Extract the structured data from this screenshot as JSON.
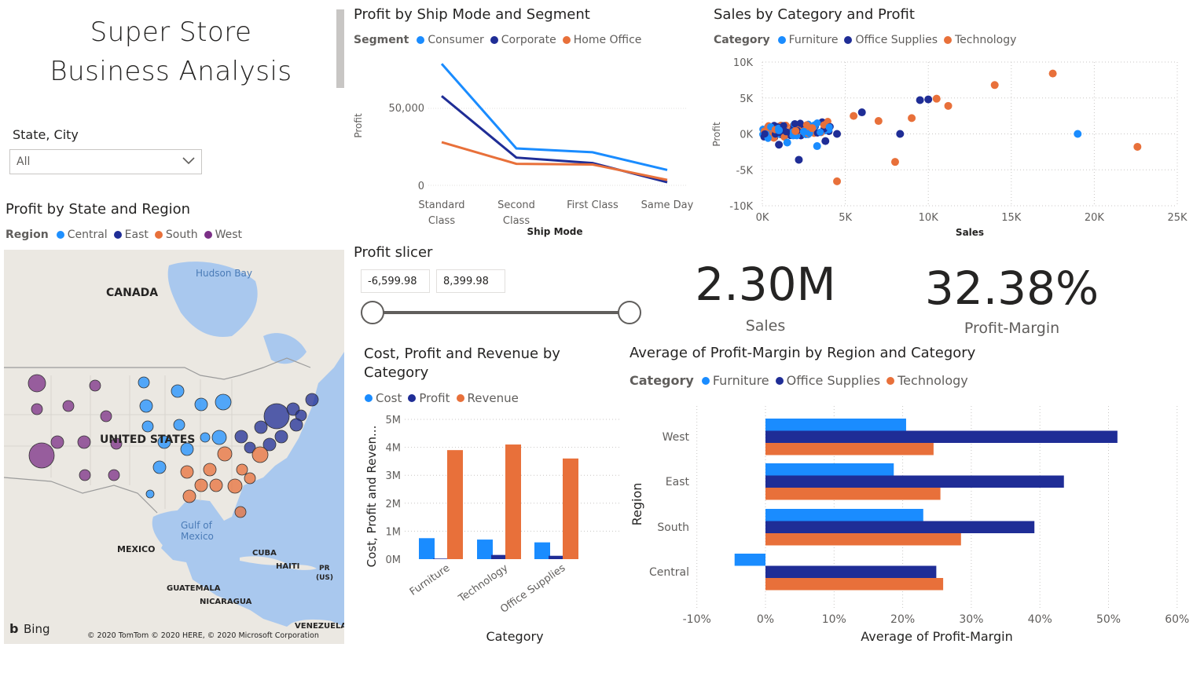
{
  "header": {
    "line1": "Super Store",
    "line2": "Business Analysis"
  },
  "state_slicer": {
    "label": "State, City",
    "value": "All"
  },
  "map": {
    "title": "Profit by State and Region",
    "legend_title": "Region",
    "legend": [
      {
        "name": "Central",
        "color": "#1e90ff"
      },
      {
        "name": "East",
        "color": "#1f2d96"
      },
      {
        "name": "South",
        "color": "#e8703a"
      },
      {
        "name": "West",
        "color": "#7b2f86"
      }
    ],
    "labels": {
      "hudson": "Hudson Bay",
      "canada": "CANADA",
      "us": "UNITED STATES",
      "gulf1": "Gulf of",
      "gulf2": "Mexico",
      "mexico": "MEXICO",
      "cuba": "CUBA",
      "haiti": "HAITI",
      "pr1": "PR",
      "pr2": "(US)",
      "guatemala": "GUATEMALA",
      "nicaragua": "NICARAGUA",
      "venezuela": "VENEZUELA",
      "bing": "Bing",
      "copyright": "© 2020 TomTom © 2020 HERE, © 2020 Microsoft Corporation"
    }
  },
  "line_chart": {
    "title": "Profit by Ship Mode and Segment",
    "legend_title": "Segment",
    "legend": [
      {
        "name": "Consumer",
        "color": "#1a8cff"
      },
      {
        "name": "Corporate",
        "color": "#1f2d96"
      },
      {
        "name": "Home Office",
        "color": "#e8703a"
      }
    ],
    "ylabel": "Profit",
    "xlabel": "Ship Mode",
    "yticks": [
      "50,000",
      "0"
    ],
    "categories": [
      [
        "Standard",
        "Class"
      ],
      [
        "Second",
        "Class"
      ],
      [
        "First Class"
      ],
      [
        "Same Day"
      ]
    ]
  },
  "scatter_chart": {
    "title": "Sales by Category and Profit",
    "legend_title": "Category",
    "legend": [
      {
        "name": "Furniture",
        "color": "#1a8cff"
      },
      {
        "name": "Office Supplies",
        "color": "#1f2d96"
      },
      {
        "name": "Technology",
        "color": "#e8703a"
      }
    ],
    "ylabel": "Profit",
    "xlabel": "Sales",
    "yticks": [
      "10K",
      "5K",
      "0K",
      "-5K",
      "-10K"
    ],
    "xticks": [
      "0K",
      "5K",
      "10K",
      "15K",
      "20K",
      "25K"
    ]
  },
  "profit_slicer": {
    "title": "Profit slicer",
    "min": "-6,599.98",
    "max": "8,399.98"
  },
  "cards": [
    {
      "value": "2.30M",
      "label": "Sales"
    },
    {
      "value": "32.38%",
      "label": "Profit-Margin"
    }
  ],
  "column_chart": {
    "title_line1": "Cost, Profit and Revenue by",
    "title_line2": "Category",
    "legend": [
      {
        "name": "Cost",
        "color": "#1a8cff"
      },
      {
        "name": "Profit",
        "color": "#1f2d96"
      },
      {
        "name": "Revenue",
        "color": "#e8703a"
      }
    ],
    "ylabel": "Cost, Profit and Reven...",
    "xlabel": "Category",
    "yticks": [
      "5M",
      "4M",
      "3M",
      "2M",
      "1M",
      "0M"
    ]
  },
  "bar_chart": {
    "title": "Average of Profit-Margin by Region and Category",
    "legend_title": "Category",
    "legend": [
      {
        "name": "Furniture",
        "color": "#1a8cff"
      },
      {
        "name": "Office Supplies",
        "color": "#1f2d96"
      },
      {
        "name": "Technology",
        "color": "#e8703a"
      }
    ],
    "ylabel": "Region",
    "xlabel": "Average of Profit-Margin",
    "xticks": [
      "-10%",
      "0%",
      "10%",
      "20%",
      "30%",
      "40%",
      "50%",
      "60%"
    ]
  },
  "chart_data": [
    {
      "type": "line",
      "title": "Profit by Ship Mode and Segment",
      "xlabel": "Ship Mode",
      "ylabel": "Profit",
      "categories": [
        "Standard Class",
        "Second Class",
        "First Class",
        "Same Day"
      ],
      "series": [
        {
          "name": "Consumer",
          "values": [
            79000,
            24000,
            21500,
            10000
          ]
        },
        {
          "name": "Corporate",
          "values": [
            58000,
            18000,
            14500,
            2000
          ]
        },
        {
          "name": "Home Office",
          "values": [
            28000,
            14000,
            13500,
            3500
          ]
        }
      ]
    },
    {
      "type": "scatter",
      "title": "Sales by Category and Profit",
      "xlabel": "Sales",
      "ylabel": "Profit",
      "xlim": [
        0,
        25000
      ],
      "ylim": [
        -10000,
        10000
      ],
      "series": [
        {
          "name": "Furniture",
          "points": [
            [
              19000,
              0
            ],
            [
              3300,
              -1700
            ],
            [
              1500,
              -1200
            ],
            [
              1000,
              500
            ],
            [
              2500,
              300
            ]
          ]
        },
        {
          "name": "Office Supplies",
          "points": [
            [
              10000,
              4800
            ],
            [
              9500,
              4700
            ],
            [
              6000,
              3000
            ],
            [
              8300,
              0
            ],
            [
              2200,
              -3600
            ],
            [
              1000,
              -1500
            ],
            [
              3800,
              -1000
            ],
            [
              4500,
              0
            ]
          ]
        },
        {
          "name": "Technology",
          "points": [
            [
              17500,
              8400
            ],
            [
              14000,
              6800
            ],
            [
              22600,
              -1800
            ],
            [
              10500,
              4900
            ],
            [
              11200,
              3900
            ],
            [
              9000,
              2200
            ],
            [
              8000,
              -3900
            ],
            [
              4500,
              -6600
            ],
            [
              5500,
              2500
            ],
            [
              7000,
              1800
            ],
            [
              3000,
              800
            ],
            [
              2000,
              400
            ]
          ]
        }
      ]
    },
    {
      "type": "bar",
      "title": "Cost, Profit and Revenue by Category",
      "xlabel": "Category",
      "ylabel": "Cost, Profit and Reven...",
      "ylim": [
        0,
        5000000
      ],
      "categories": [
        "Furniture",
        "Technology",
        "Office Supplies"
      ],
      "series": [
        {
          "name": "Cost",
          "values": [
            750000,
            700000,
            600000
          ]
        },
        {
          "name": "Profit",
          "values": [
            20000,
            150000,
            120000
          ]
        },
        {
          "name": "Revenue",
          "values": [
            3900000,
            4100000,
            3600000
          ]
        }
      ]
    },
    {
      "type": "bar",
      "title": "Average of Profit-Margin by Region and Category",
      "xlabel": "Average of Profit-Margin",
      "ylabel": "Region",
      "xlim": [
        -10,
        60
      ],
      "categories": [
        "West",
        "East",
        "South",
        "Central"
      ],
      "series": [
        {
          "name": "Furniture",
          "values": [
            20.5,
            18.7,
            23,
            -4.5
          ]
        },
        {
          "name": "Office Supplies",
          "values": [
            51.3,
            43.5,
            39.2,
            24.9
          ]
        },
        {
          "name": "Technology",
          "values": [
            24.5,
            25.5,
            28.5,
            25.9
          ]
        }
      ]
    }
  ]
}
